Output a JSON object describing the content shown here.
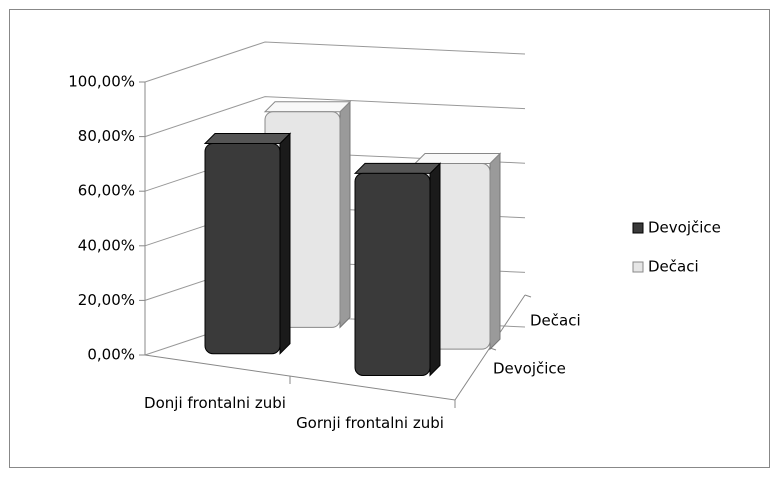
{
  "chart_data": {
    "type": "bar3d",
    "categories": [
      "Donji frontalni zubi",
      "Gornji frontalni zubi"
    ],
    "series": [
      {
        "name": "Devojčice",
        "color": "#3a3a3a",
        "values": [
          77,
          74
        ]
      },
      {
        "name": "Dečaci",
        "color": "#e6e6e6",
        "values": [
          79,
          68
        ]
      }
    ],
    "ylim": [
      0,
      100
    ],
    "yticks": [
      {
        "value": 0,
        "label": "0,00%"
      },
      {
        "value": 20,
        "label": "20,00%"
      },
      {
        "value": 40,
        "label": "40,00%"
      },
      {
        "value": 60,
        "label": "60,00%"
      },
      {
        "value": 80,
        "label": "80,00%"
      },
      {
        "value": 100,
        "label": "100,00%"
      }
    ],
    "grid": true,
    "legend": "right"
  }
}
